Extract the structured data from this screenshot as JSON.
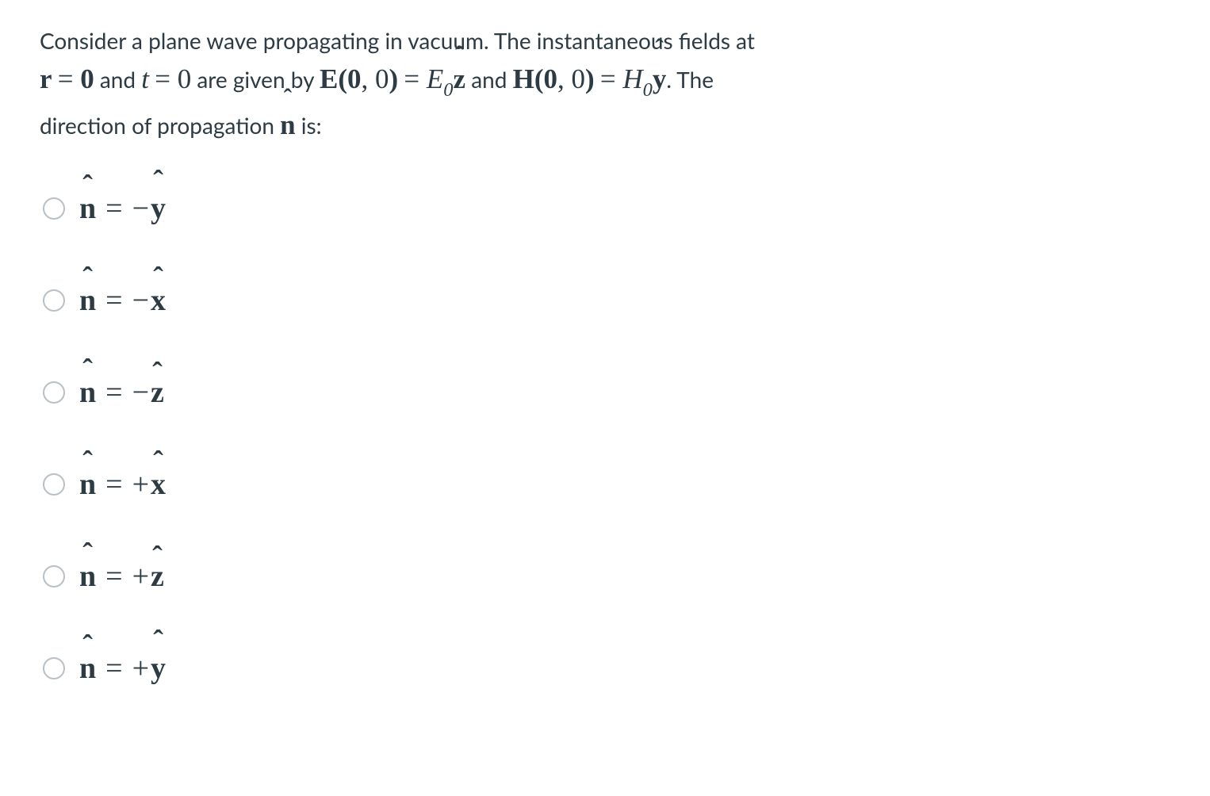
{
  "question": {
    "line1_part1": "Consider a plane wave propagating in vacuum. The instantaneous fields at",
    "r_eq": "r",
    "eq_sign": "=",
    "zero_bold": "0",
    "and1": " and ",
    "t_var": "t",
    "zero_plain": "0",
    "are_given": " are given by ",
    "E_label": "E",
    "paren_args": "0, 0",
    "E0": "E",
    "sub0": "0",
    "z_hat": "z",
    "and2": " and ",
    "H_label": "H",
    "H0": "H",
    "y_hat": "y",
    "period_the": ". The",
    "line3_part1": "direction of propagation ",
    "n_hat": "n",
    "is_colon": " is:"
  },
  "options": [
    {
      "lhs": "n",
      "sign": "−",
      "rhs": "y"
    },
    {
      "lhs": "n",
      "sign": "−",
      "rhs": "x"
    },
    {
      "lhs": "n",
      "sign": "−",
      "rhs": "z"
    },
    {
      "lhs": "n",
      "sign": "+",
      "rhs": "x"
    },
    {
      "lhs": "n",
      "sign": "+",
      "rhs": "z"
    },
    {
      "lhs": "n",
      "sign": "+",
      "rhs": "y"
    }
  ],
  "style": {
    "text_color": "#2d3b45",
    "radio_border": "#b8bfc5",
    "background": "#ffffff",
    "question_fontsize": 28,
    "option_fontsize": 38
  }
}
